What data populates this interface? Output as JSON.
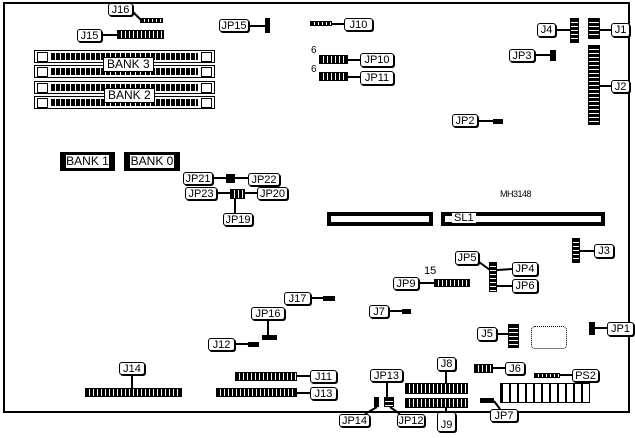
{
  "board": {
    "model_code": "MH3148",
    "pin_marks": {
      "jp10": "6",
      "jp11": "6",
      "jp9": "15"
    }
  },
  "memory": {
    "bank3": "BANK 3",
    "bank2": "BANK 2",
    "bank1": "BANK 1",
    "bank0": "BANK 0"
  },
  "slot": {
    "sl1": "SL1"
  },
  "connectors": {
    "j1": "J1",
    "j2": "J2",
    "j3": "J3",
    "j4": "J4",
    "j5": "J5",
    "j6": "J6",
    "j7": "J7",
    "j8": "J8",
    "j9": "J9",
    "j10": "J10",
    "j11": "J11",
    "j12": "J12",
    "j13": "J13",
    "j14": "J14",
    "j15": "J15",
    "j16": "J16",
    "j17": "J17",
    "ps2": "PS2"
  },
  "jumpers": {
    "jp1": "JP1",
    "jp2": "JP2",
    "jp3": "JP3",
    "jp4": "JP4",
    "jp5": "JP5",
    "jp6": "JP6",
    "jp7": "JP7",
    "jp9": "JP9",
    "jp10": "JP10",
    "jp11": "JP11",
    "jp12": "JP12",
    "jp13": "JP13",
    "jp14": "JP14",
    "jp15": "JP15",
    "jp16": "JP16",
    "jp19": "JP19",
    "jp20": "JP20",
    "jp21": "JP21",
    "jp22": "JP22",
    "jp23": "JP23"
  }
}
